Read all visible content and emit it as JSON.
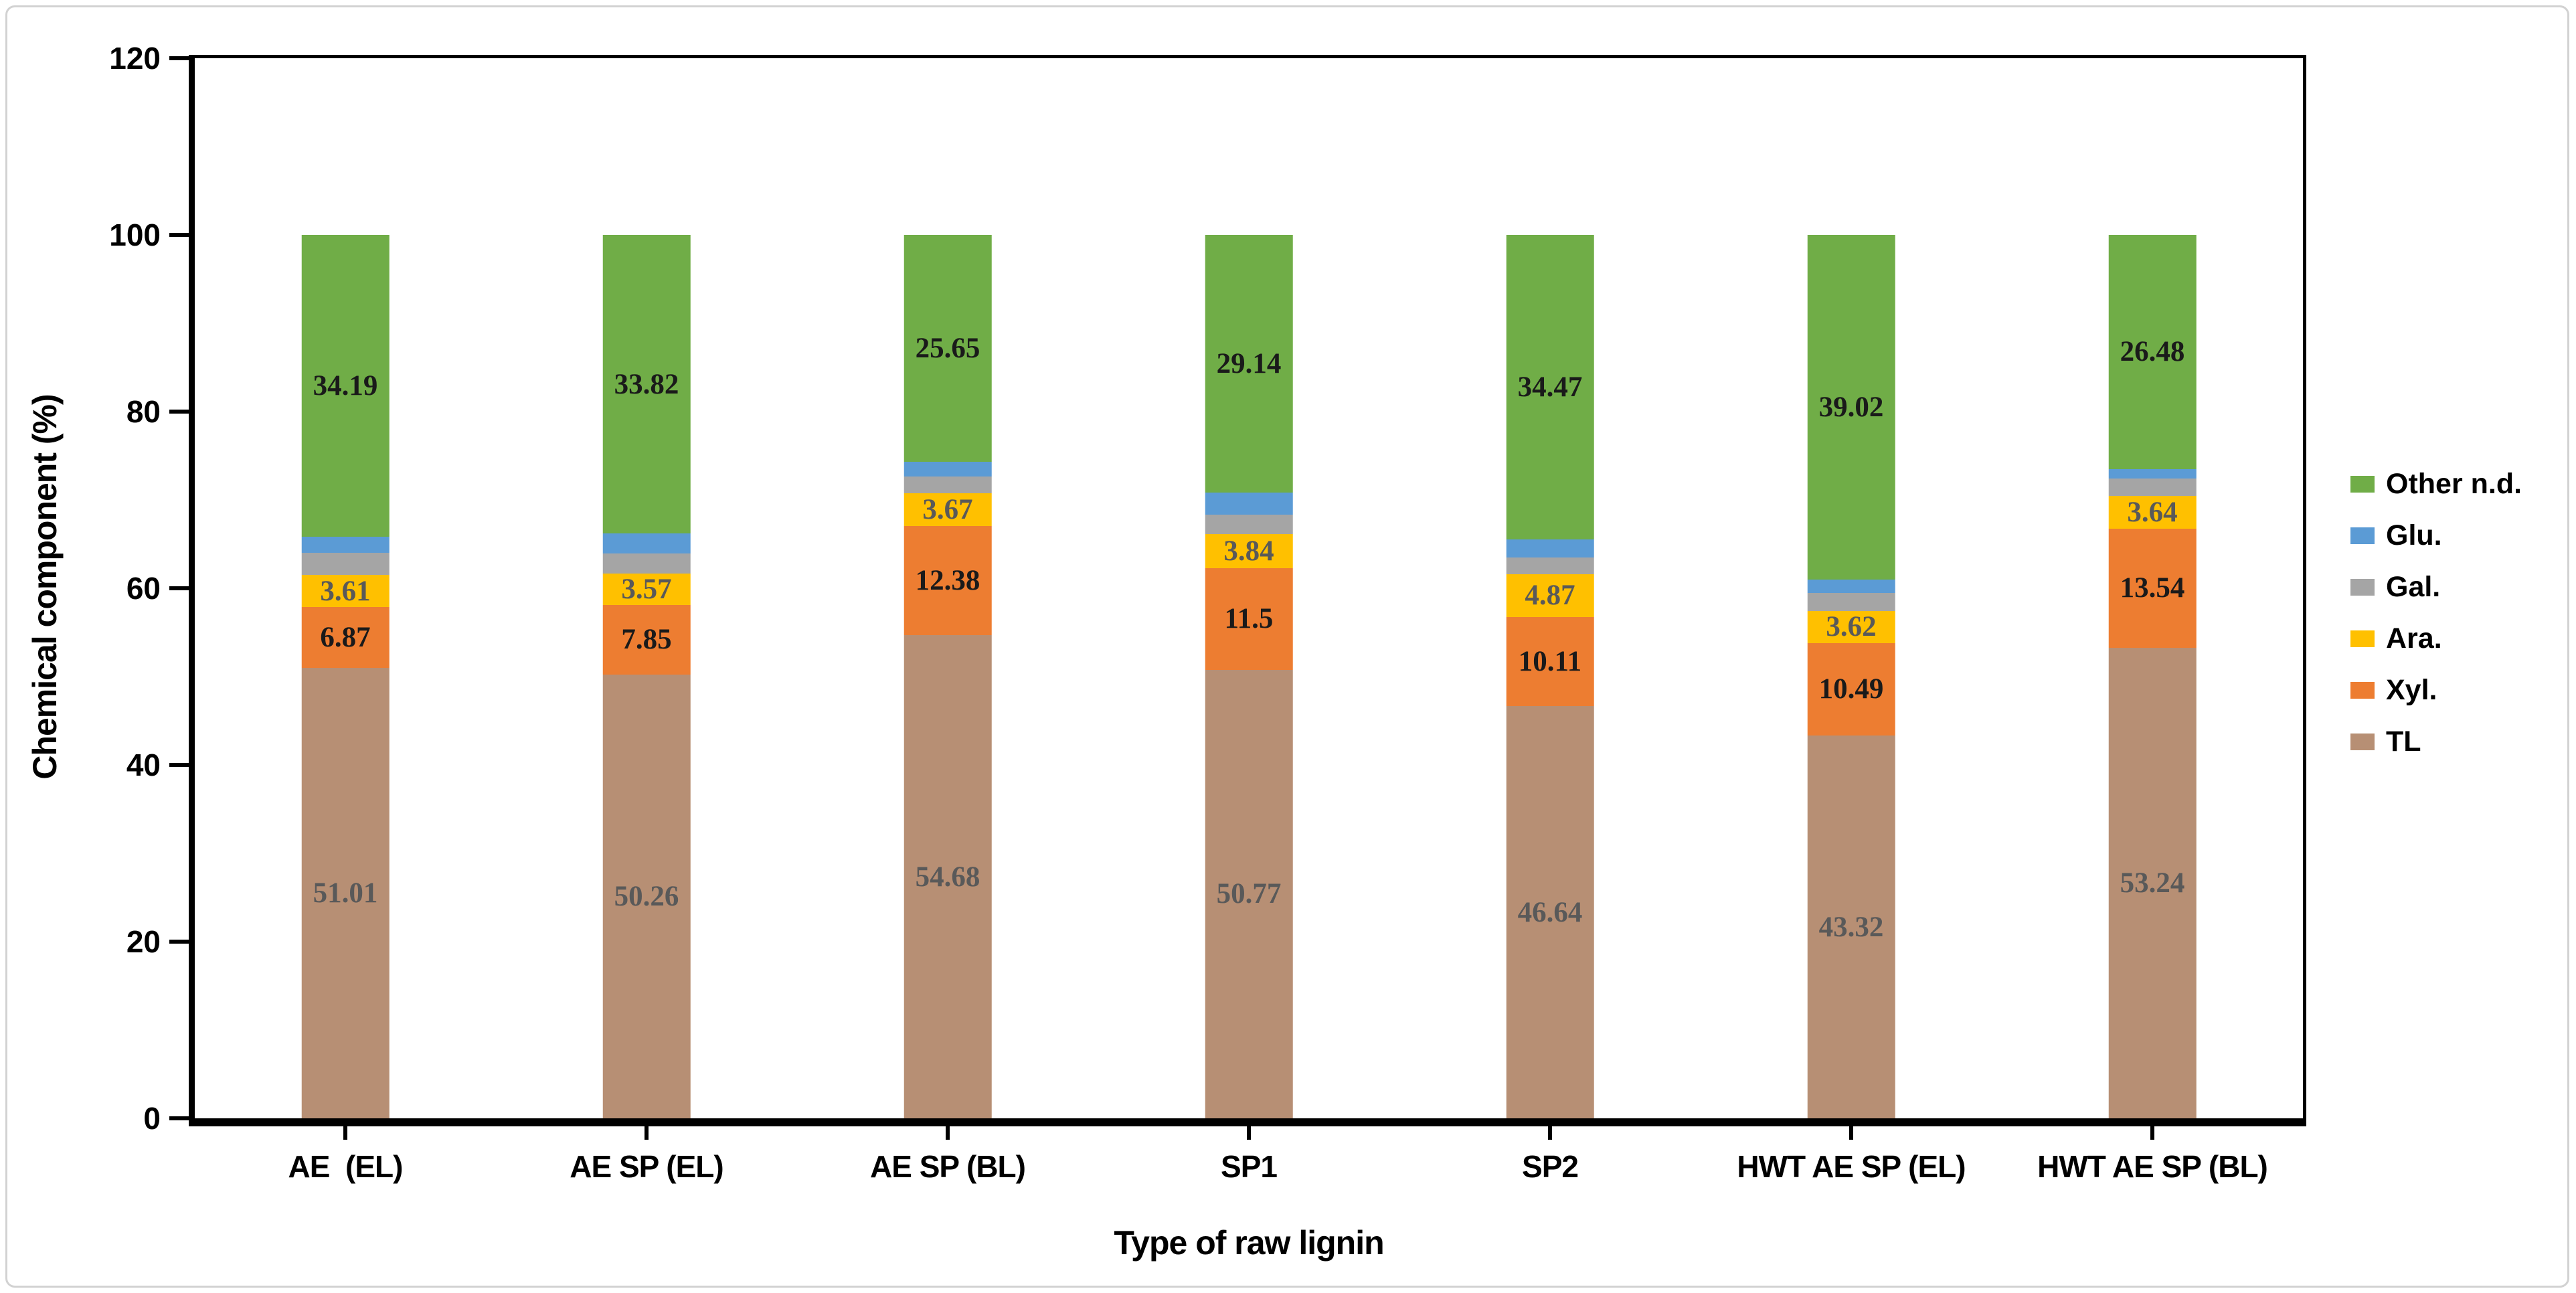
{
  "figure": {
    "ylabel": "Chemical component (%)",
    "xlabel": "Type of raw lignin"
  },
  "chart_data": {
    "type": "bar",
    "stacked": true,
    "orientation": "vertical",
    "title": "",
    "xlabel": "Type of raw lignin",
    "ylabel": "Chemical component (%)",
    "categories": [
      "AE  (EL)",
      "AE SP (EL)",
      "AE SP (BL)",
      "SP1",
      "SP2",
      "HWT AE SP (EL)",
      "HWT AE SP (BL)"
    ],
    "ylim": [
      0,
      120
    ],
    "yticks": [
      0,
      20,
      40,
      60,
      80,
      100,
      120
    ],
    "grid": false,
    "legend_position": "right",
    "legend_order_top_to_bottom": [
      "Other n.d.",
      "Glu.",
      "Gal.",
      "Ara.",
      "Xyl.",
      "TL"
    ],
    "series_bottom_to_top": [
      {
        "name": "TL",
        "color": "#B78F74",
        "label_color": "#595959",
        "values": [
          51.01,
          50.26,
          54.68,
          50.77,
          46.64,
          43.32,
          53.24
        ],
        "data_labels": [
          "51.01",
          "50.26",
          "54.68",
          "50.77",
          "46.64",
          "43.32",
          "53.24"
        ]
      },
      {
        "name": "Xyl.",
        "color": "#ED7D31",
        "label_color": "#1a1a1a",
        "values": [
          6.87,
          7.85,
          12.38,
          11.5,
          10.11,
          10.49,
          13.54
        ],
        "data_labels": [
          "6.87",
          "7.85",
          "12.38",
          "11.5",
          "10.11",
          "10.49",
          "13.54"
        ]
      },
      {
        "name": "Ara.",
        "color": "#FFC000",
        "label_color": "#595959",
        "values": [
          3.61,
          3.57,
          3.67,
          3.84,
          4.87,
          3.62,
          3.64
        ],
        "data_labels": [
          "3.61",
          "3.57",
          "3.67",
          "3.84",
          "4.87",
          "3.62",
          "3.64"
        ]
      },
      {
        "name": "Gal.",
        "color": "#A5A5A5",
        "label_color": null,
        "values": [
          2.54,
          2.29,
          1.96,
          2.2,
          1.88,
          2.01,
          2.01
        ],
        "data_labels": null
      },
      {
        "name": "Glu.",
        "color": "#5B9BD5",
        "label_color": null,
        "values": [
          1.78,
          2.21,
          1.66,
          2.55,
          2.03,
          1.54,
          1.09
        ],
        "data_labels": null
      },
      {
        "name": "Other n.d.",
        "color": "#70AD47",
        "label_color": "#1a1a1a",
        "values": [
          34.19,
          33.82,
          25.65,
          29.14,
          34.47,
          39.02,
          26.48
        ],
        "data_labels": [
          "34.19",
          "33.82",
          "25.65",
          "29.14",
          "34.47",
          "39.02",
          "26.48"
        ]
      }
    ]
  }
}
